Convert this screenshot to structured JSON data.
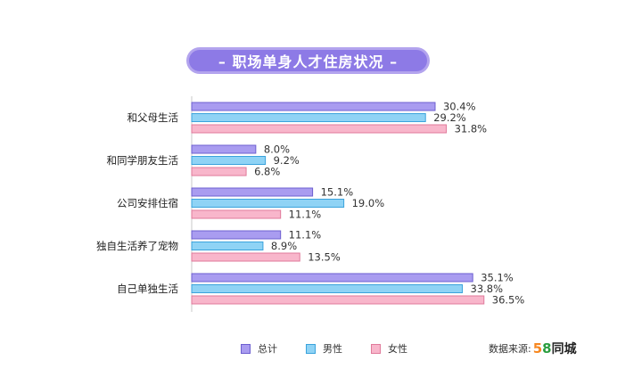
{
  "title": "– 职场单身人才住房状况 –",
  "legend": [
    "总计",
    "男性",
    "女性"
  ],
  "source": {
    "label": "数据来源:",
    "brand_digits": [
      "5",
      "8"
    ],
    "brand_name": "同城"
  },
  "colors": {
    "total": "#a99cf0",
    "male": "#8fd3f5",
    "female": "#f8b6cb",
    "total_border": "#6d5fd0",
    "male_border": "#3aa3dc",
    "female_border": "#e07a9b"
  },
  "chart_data": {
    "type": "bar",
    "orientation": "horizontal",
    "categories": [
      "和父母生活",
      "和同学朋友生活",
      "公司安排住宿",
      "独自生活养了宠物",
      "自己单独生活"
    ],
    "series": [
      {
        "name": "总计",
        "values": [
          30.4,
          8.0,
          15.1,
          11.1,
          35.1
        ],
        "labels": [
          "30.4%",
          "8.0%",
          "15.1%",
          "11.1%",
          "35.1%"
        ]
      },
      {
        "name": "男性",
        "values": [
          29.2,
          9.2,
          19.0,
          8.9,
          33.8
        ],
        "labels": [
          "29.2%",
          "9.2%",
          "19.0%",
          "8.9%",
          "33.8%"
        ]
      },
      {
        "name": "女性",
        "values": [
          31.8,
          6.8,
          11.1,
          13.5,
          36.5
        ],
        "labels": [
          "31.8%",
          "6.8%",
          "11.1%",
          "13.5%",
          "36.5%"
        ]
      }
    ],
    "unit": "%",
    "grid": false,
    "legend_position": "bottom"
  }
}
